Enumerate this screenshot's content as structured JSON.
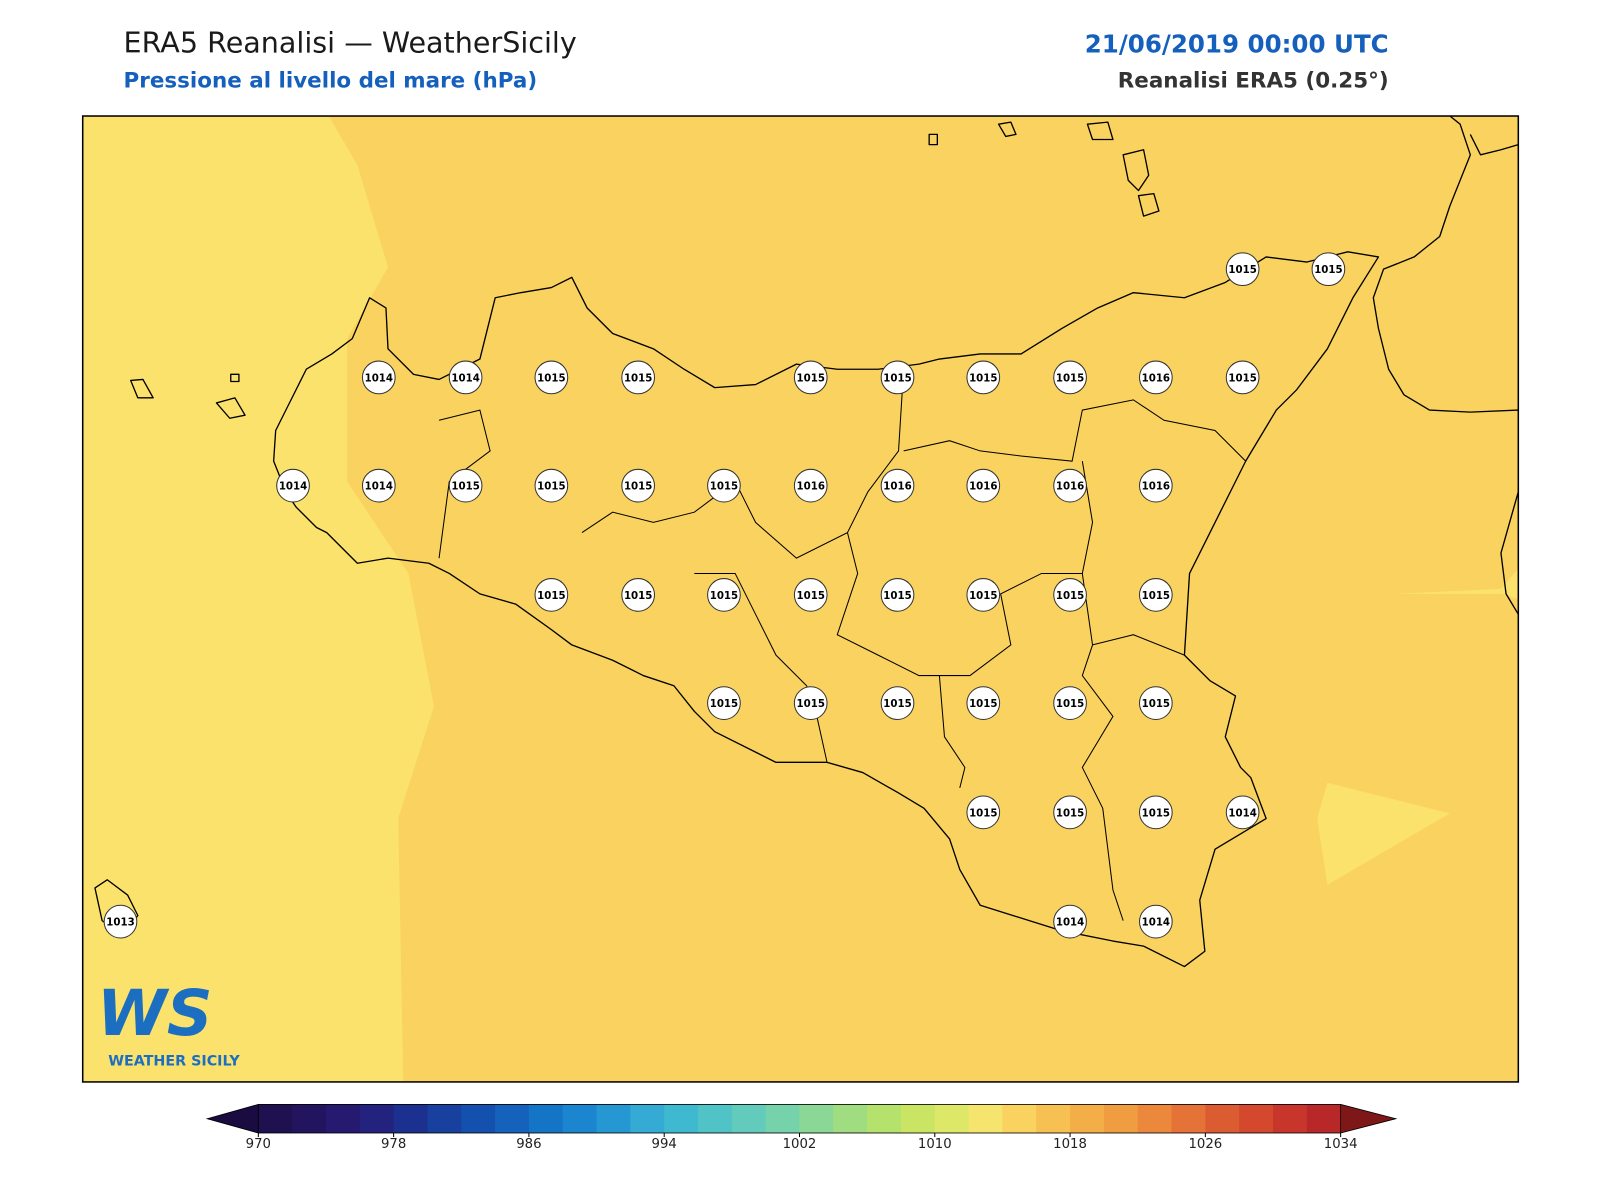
{
  "header": {
    "title": "ERA5 Reanalisi — WeatherSicily",
    "subtitle": "Pressione al livello del mare (hPa)",
    "datetime": "21/06/2019 00:00 UTC",
    "source": "Reanalisi ERA5 (0.25°)"
  },
  "logo": {
    "mark": "WS",
    "text": "WEATHER SICILY"
  },
  "stations": [
    1015,
    1015,
    1014,
    1014,
    1015,
    1015,
    1015,
    1015,
    1015,
    1015,
    1016,
    1015,
    1014,
    1014,
    1015,
    1015,
    1015,
    1015,
    1016,
    1016,
    1016,
    1016,
    1016,
    1015,
    1015,
    1015,
    1015,
    1015,
    1015,
    1015,
    1015,
    1015,
    1015,
    1015,
    1015,
    1015,
    1015,
    1015,
    1015,
    1015,
    1014,
    1013,
    1014,
    1014
  ],
  "colorbar": {
    "lim": [
      970,
      1034
    ],
    "ticks": [
      970,
      978,
      986,
      994,
      1002,
      1010,
      1018,
      1026,
      1034
    ],
    "colors": [
      "#1f1050",
      "#231460",
      "#251a70",
      "#23237f",
      "#1c308f",
      "#17409f",
      "#1450ae",
      "#1462bb",
      "#1474c6",
      "#1b86cf",
      "#2598d3",
      "#34aad4",
      "#3fb9cf",
      "#4fc3c6",
      "#62cbbb",
      "#76d2ab",
      "#8bd896",
      "#a0dd80",
      "#b5e26c",
      "#cae564",
      "#dde868",
      "#f5e46e",
      "#f9d25f",
      "#f6c052",
      "#f4ae48",
      "#f09c41",
      "#ec883b",
      "#e57236",
      "#dc5c31",
      "#d4482e",
      "#c8362b",
      "#b82828"
    ],
    "under_color": "#1a0b40",
    "over_color": "#7e1717"
  }
}
